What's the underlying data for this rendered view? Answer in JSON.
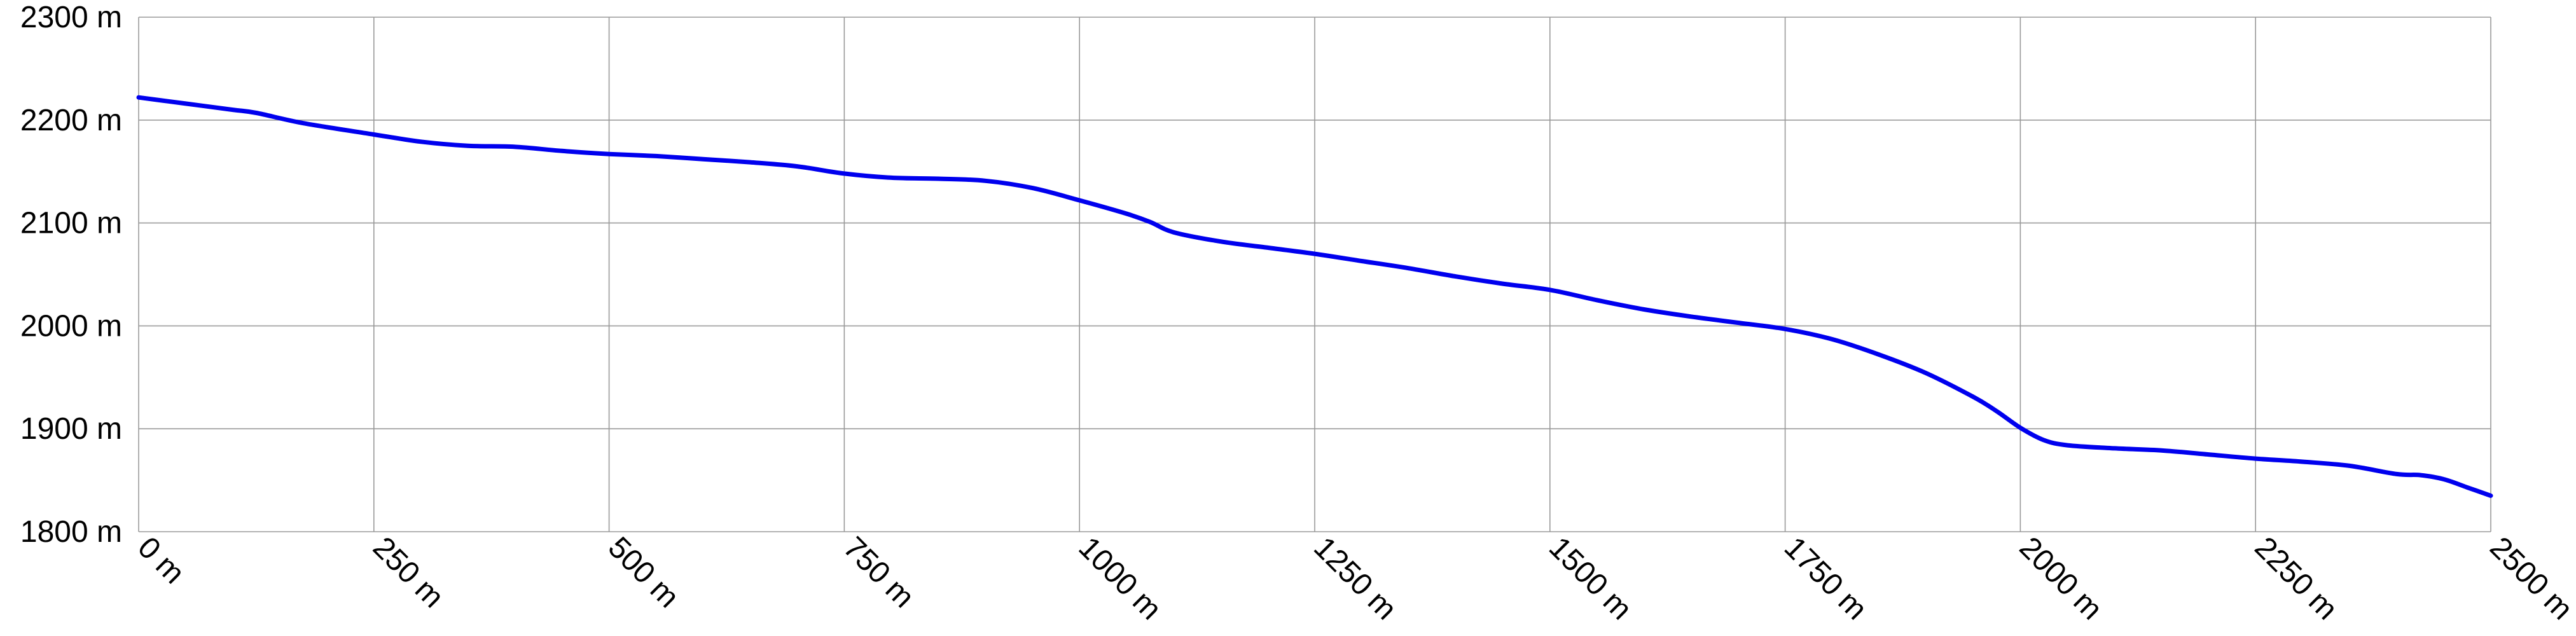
{
  "chart_data": {
    "type": "line",
    "title": "",
    "xlabel": "",
    "ylabel": "",
    "xlim": [
      0,
      2500
    ],
    "ylim": [
      1800,
      2300
    ],
    "x_ticks": [
      0,
      250,
      500,
      750,
      1000,
      1250,
      1500,
      1750,
      2000,
      2250,
      2500
    ],
    "x_tick_labels": [
      "0 m",
      "250 m",
      "500 m",
      "750 m",
      "1000 m",
      "1250 m",
      "1500 m",
      "1750 m",
      "2000 m",
      "2250 m",
      "2500 m"
    ],
    "y_ticks": [
      1800,
      1900,
      2000,
      2100,
      2200,
      2300
    ],
    "y_tick_labels": [
      "1800 m",
      "1900 m",
      "2000 m",
      "2100 m",
      "2200 m",
      "2300 m"
    ],
    "grid": true,
    "legend": "none",
    "line_color": "#0000ee",
    "series": [
      {
        "x": [
          0,
          50,
          100,
          125,
          175,
          250,
          300,
          350,
          400,
          450,
          500,
          550,
          600,
          650,
          700,
          750,
          800,
          850,
          900,
          950,
          1000,
          1050,
          1075,
          1100,
          1150,
          1200,
          1250,
          1300,
          1350,
          1400,
          1450,
          1500,
          1550,
          1600,
          1650,
          1700,
          1750,
          1800,
          1850,
          1900,
          1950,
          1975,
          2000,
          2025,
          2050,
          2100,
          2150,
          2200,
          2250,
          2300,
          2350,
          2400,
          2425,
          2450,
          2475,
          2500
        ],
        "y": [
          2222,
          2216,
          2210,
          2207,
          2197,
          2186,
          2179,
          2175,
          2174,
          2170,
          2167,
          2165,
          2162,
          2159,
          2155,
          2148,
          2144,
          2143,
          2141,
          2134,
          2122,
          2109,
          2101,
          2091,
          2082,
          2076,
          2070,
          2063,
          2056,
          2048,
          2041,
          2035,
          2025,
          2016,
          2009,
          2003,
          1997,
          1987,
          1972,
          1954,
          1931,
          1917,
          1901,
          1889,
          1884,
          1881,
          1879,
          1875,
          1871,
          1868,
          1864,
          1856,
          1855,
          1851,
          1843,
          1835
        ]
      }
    ]
  }
}
